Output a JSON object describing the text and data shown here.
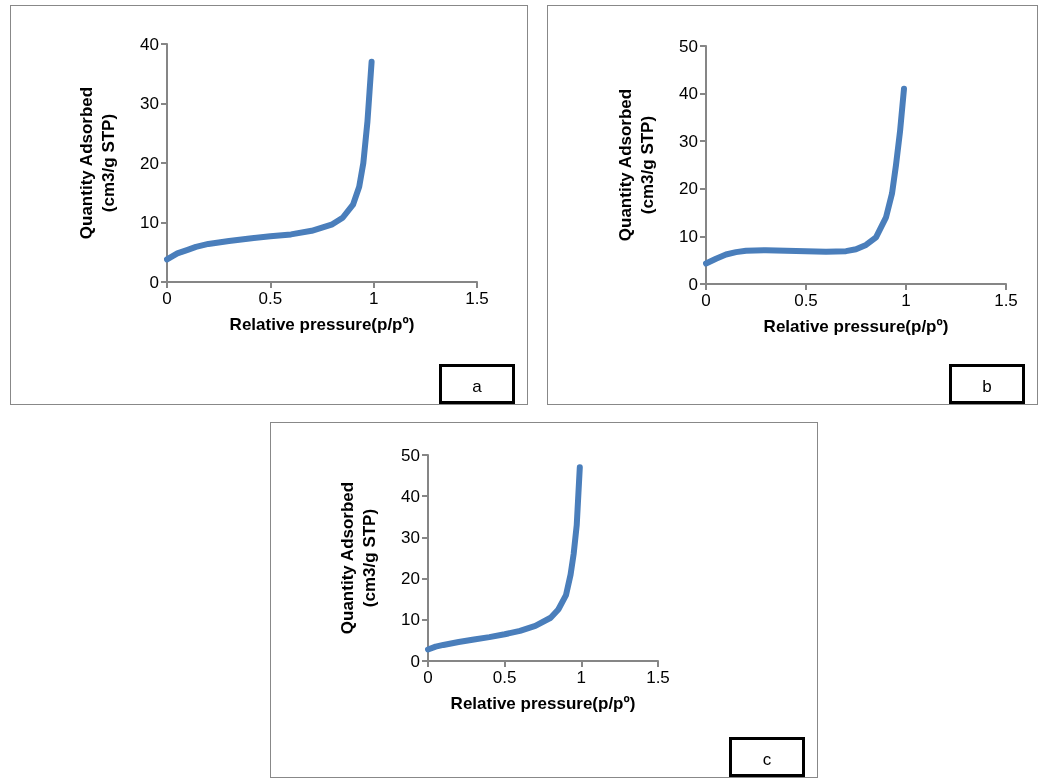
{
  "chart_data": [
    {
      "type": "line",
      "xlabel": "Relative pressure(p/pº)",
      "ylabel": "Quantity Adsorbed\n(cm3/g STP)",
      "annotations": [
        "a"
      ],
      "xlim": [
        0,
        1.5
      ],
      "xticks": [
        0,
        0.5,
        1,
        1.5
      ],
      "ylim": [
        0,
        40
      ],
      "yticks": [
        0,
        10,
        20,
        30,
        40
      ],
      "marker": "none",
      "line_style": "solid",
      "series": [
        {
          "color": "#4a7ebb",
          "x": [
            0,
            0.05,
            0.1,
            0.14,
            0.2,
            0.3,
            0.4,
            0.5,
            0.6,
            0.7,
            0.8,
            0.85,
            0.9,
            0.93,
            0.95,
            0.97,
            0.98,
            0.99
          ],
          "values": [
            3.8,
            4.8,
            5.4,
            5.9,
            6.4,
            6.9,
            7.3,
            7.7,
            8.0,
            8.6,
            9.7,
            10.8,
            13,
            16,
            20,
            27,
            32,
            37
          ]
        }
      ]
    },
    {
      "type": "line",
      "xlabel": "Relative pressure(p/pº)",
      "ylabel": "Quantity Adsorbed\n(cm3/g STP)",
      "annotations": [
        "b"
      ],
      "xlim": [
        0,
        1.5
      ],
      "xticks": [
        0,
        0.5,
        1,
        1.5
      ],
      "ylim": [
        0,
        50
      ],
      "yticks": [
        0,
        10,
        20,
        30,
        40,
        50
      ],
      "marker": "none",
      "line_style": "solid",
      "series": [
        {
          "color": "#4a7ebb",
          "x": [
            0,
            0.05,
            0.1,
            0.15,
            0.2,
            0.3,
            0.4,
            0.5,
            0.6,
            0.7,
            0.75,
            0.8,
            0.85,
            0.9,
            0.93,
            0.95,
            0.97,
            0.99
          ],
          "values": [
            4.3,
            5.3,
            6.2,
            6.7,
            7.0,
            7.1,
            7.0,
            6.9,
            6.8,
            6.9,
            7.3,
            8.2,
            9.8,
            14,
            19,
            25,
            32,
            41
          ]
        }
      ]
    },
    {
      "type": "line",
      "xlabel": "Relative pressure(p/pº)",
      "ylabel": "Quantity Adsorbed\n(cm3/g STP)",
      "annotations": [
        "c"
      ],
      "xlim": [
        0,
        1.5
      ],
      "xticks": [
        0,
        0.5,
        1,
        1.5
      ],
      "ylim": [
        0,
        50
      ],
      "yticks": [
        0,
        10,
        20,
        30,
        40,
        50
      ],
      "marker": "none",
      "line_style": "solid",
      "series": [
        {
          "color": "#4a7ebb",
          "x": [
            0,
            0.05,
            0.1,
            0.2,
            0.3,
            0.4,
            0.5,
            0.6,
            0.7,
            0.8,
            0.85,
            0.9,
            0.93,
            0.95,
            0.97,
            0.99
          ],
          "values": [
            2.8,
            3.5,
            3.9,
            4.6,
            5.2,
            5.8,
            6.5,
            7.3,
            8.5,
            10.5,
            12.5,
            16,
            21,
            26,
            33,
            47
          ]
        }
      ]
    }
  ]
}
